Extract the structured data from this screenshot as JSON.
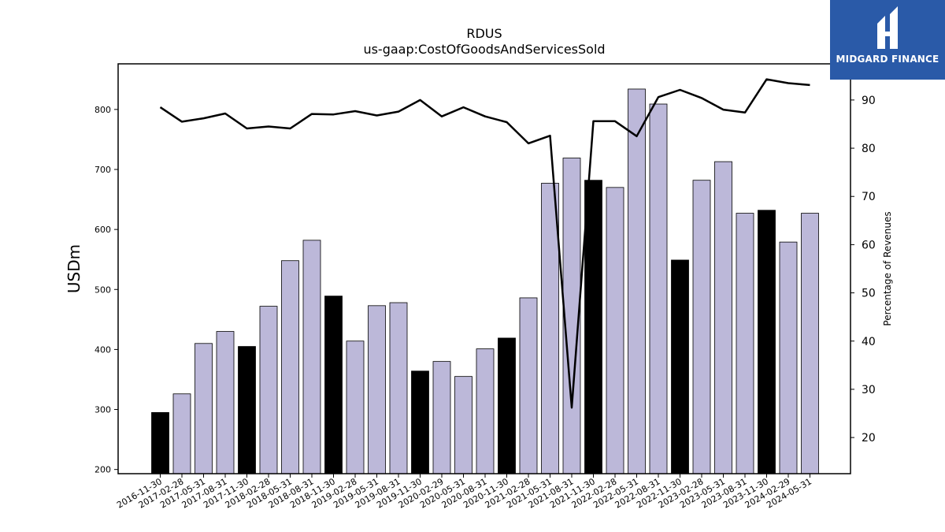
{
  "chart_data": {
    "type": "bar",
    "title": "RDUS",
    "subtitle": "us-gaap:CostOfGoodsAndServicesSold",
    "ylabel": "USDm",
    "y2label": "Percentage of Revenues",
    "ylim": [
      193,
      876
    ],
    "y2lim": [
      12.5,
      97.5
    ],
    "yticks": [
      200,
      300,
      400,
      500,
      600,
      700,
      800
    ],
    "y2ticks": [
      20,
      30,
      40,
      50,
      60,
      70,
      80,
      90
    ],
    "categories": [
      "2016-11-30",
      "2017-02-28",
      "2017-05-31",
      "2017-08-31",
      "2017-11-30",
      "2018-02-28",
      "2018-05-31",
      "2018-08-31",
      "2018-11-30",
      "2019-02-28",
      "2019-05-31",
      "2019-08-31",
      "2019-11-30",
      "2020-02-29",
      "2020-05-31",
      "2020-08-31",
      "2020-11-30",
      "2021-02-28",
      "2021-05-31",
      "2021-08-31",
      "2021-11-30",
      "2022-02-28",
      "2022-05-31",
      "2022-08-31",
      "2022-11-30",
      "2023-02-28",
      "2023-05-31",
      "2023-08-31",
      "2023-11-30",
      "2024-02-29",
      "2024-05-31"
    ],
    "series": [
      {
        "kind": "bar",
        "values": [
          295,
          326,
          410,
          430,
          405,
          472,
          548,
          582,
          489,
          414,
          473,
          478,
          364,
          380,
          355,
          401,
          419,
          486,
          677,
          719,
          682,
          670,
          834,
          809,
          549,
          682,
          713,
          627,
          632,
          579,
          627
        ],
        "highlight": [
          true,
          false,
          false,
          false,
          true,
          false,
          false,
          false,
          true,
          false,
          false,
          false,
          true,
          false,
          false,
          false,
          true,
          false,
          false,
          false,
          true,
          false,
          false,
          false,
          true,
          false,
          false,
          false,
          true,
          false,
          false
        ]
      },
      {
        "kind": "line",
        "axis": "right",
        "values": [
          88.5,
          85.5,
          86.2,
          87.2,
          84.1,
          84.5,
          84.1,
          87.1,
          87.0,
          87.7,
          86.8,
          87.6,
          90.0,
          86.6,
          88.5,
          86.6,
          85.4,
          81.0,
          82.6,
          26.2,
          85.6,
          85.6,
          82.5,
          90.6,
          92.1,
          90.4,
          88.0,
          87.4,
          94.3,
          93.5,
          93.1
        ]
      }
    ],
    "colors": {
      "bar": "#bcb8d9",
      "bar_highlight": "#000000",
      "line": "#000000"
    },
    "grid": false
  },
  "brand": {
    "name": "MIDGARD FINANCE",
    "color": "#2a5aa8"
  }
}
